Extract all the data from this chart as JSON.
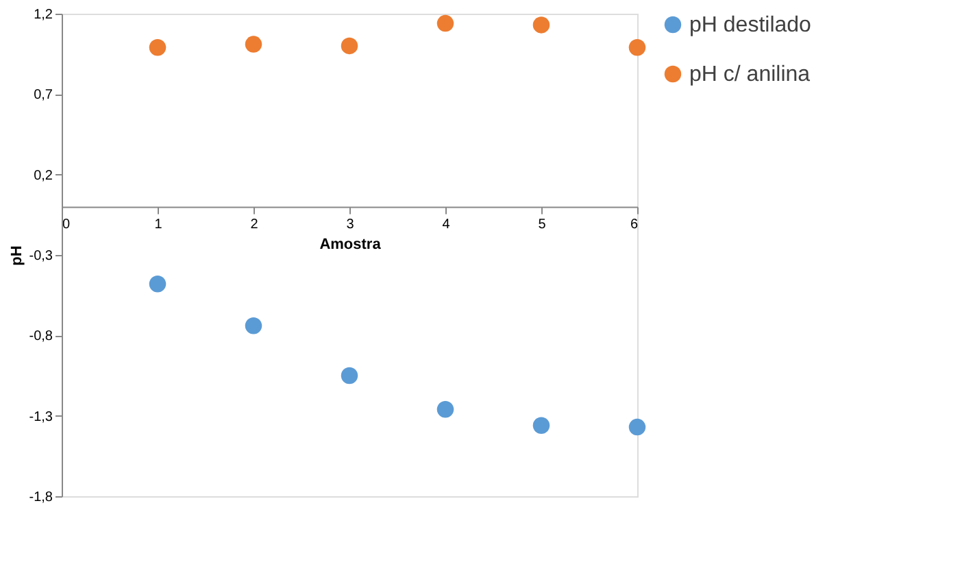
{
  "chart_data": {
    "type": "scatter",
    "xlabel": "Amostra",
    "ylabel": "pH",
    "x": [
      1,
      2,
      3,
      4,
      5,
      6
    ],
    "series": [
      {
        "name": "pH destilado",
        "color": "#5b9bd5",
        "values": [
          -0.48,
          -0.74,
          -1.05,
          -1.26,
          -1.36,
          -1.37
        ]
      },
      {
        "name": "pH c/ anilina",
        "color": "#ed7d31",
        "values": [
          0.99,
          1.01,
          1.0,
          1.14,
          1.13,
          0.99
        ]
      }
    ],
    "xlim": [
      0,
      6
    ],
    "xticks": [
      0,
      1,
      2,
      3,
      4,
      5,
      6
    ],
    "ylim": [
      -1.8,
      1.2
    ],
    "yticks": [
      {
        "value": -1.8,
        "label": "-1,8"
      },
      {
        "value": -1.3,
        "label": "-1,3"
      },
      {
        "value": -0.8,
        "label": "-0,8"
      },
      {
        "value": -0.3,
        "label": "-0,3"
      },
      {
        "value": 0.2,
        "label": "0,2"
      },
      {
        "value": 0.7,
        "label": "0,7"
      },
      {
        "value": 1.2,
        "label": "1,2"
      }
    ],
    "grid": false,
    "legend": "right",
    "marker": "circle"
  }
}
